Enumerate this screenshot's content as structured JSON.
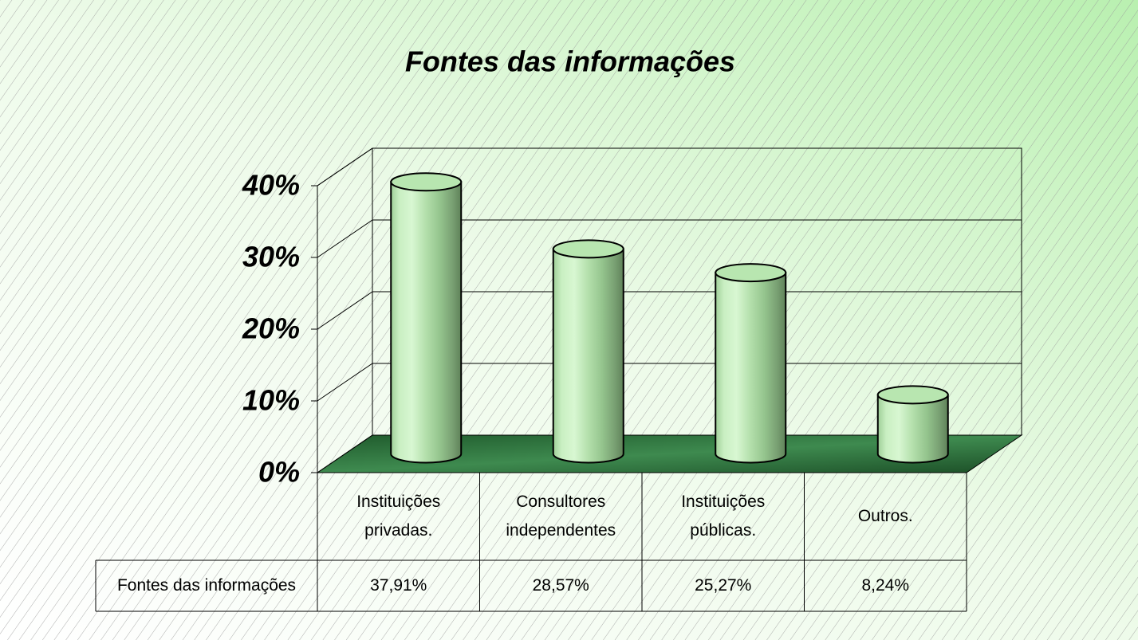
{
  "chart_data": {
    "type": "bar",
    "title": "Fontes das informações",
    "categories": [
      "Instituições privadas.",
      "Consultores independentes",
      "Instituições públicas.",
      "Outros."
    ],
    "series": [
      {
        "name": "Fontes das informações",
        "color": "#b8e6b0",
        "values": [
          37.91,
          28.57,
          25.27,
          8.24
        ],
        "value_labels": [
          "37,91%",
          "28,57%",
          "25,27%",
          "8,24%"
        ]
      }
    ],
    "ylim": [
      0,
      40
    ],
    "yticks": [
      {
        "value": 0,
        "label": "0%"
      },
      {
        "value": 10,
        "label": "10%"
      },
      {
        "value": 20,
        "label": "20%"
      },
      {
        "value": 30,
        "label": "30%"
      },
      {
        "value": 40,
        "label": "40%"
      }
    ],
    "grid": true
  }
}
